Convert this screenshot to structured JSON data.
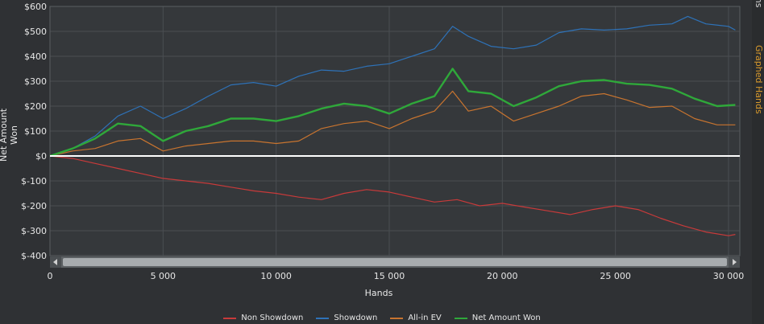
{
  "side_tabs": [
    {
      "label": "Graphs",
      "color": "#d8d8d8"
    },
    {
      "label": "Graphed Hands",
      "color": "#d99a2c"
    }
  ],
  "chart_data": {
    "type": "line",
    "title": "",
    "xlabel": "Hands",
    "ylabel": "Net Amount Won",
    "xlim": [
      0,
      30500
    ],
    "ylim": [
      -400,
      600
    ],
    "x_ticks": [
      0,
      5000,
      10000,
      15000,
      20000,
      25000,
      30000
    ],
    "x_tick_labels": [
      "0",
      "5 000",
      "10 000",
      "15 000",
      "20 000",
      "25 000",
      "30 000"
    ],
    "y_ticks": [
      600,
      500,
      400,
      300,
      200,
      100,
      0,
      -100,
      -200,
      -300,
      -400
    ],
    "y_tick_labels": [
      "$600",
      "$500",
      "$400",
      "$300",
      "$200",
      "$100",
      "$0",
      "$-100",
      "$-200",
      "$-300",
      "$-400"
    ],
    "grid": true,
    "legend_position": "bottom",
    "series": [
      {
        "name": "Non Showdown",
        "color": "#c83a3a",
        "x": [
          0,
          1000,
          2000,
          3000,
          4000,
          5000,
          6000,
          7000,
          8000,
          9000,
          10000,
          11000,
          12000,
          13000,
          14000,
          15000,
          16000,
          17000,
          18000,
          19000,
          20000,
          21000,
          22000,
          23000,
          24000,
          25000,
          26000,
          27000,
          28000,
          29000,
          30000,
          30300
        ],
        "y": [
          0,
          -10,
          -30,
          -50,
          -70,
          -90,
          -100,
          -110,
          -125,
          -140,
          -150,
          -165,
          -175,
          -150,
          -135,
          -145,
          -165,
          -185,
          -175,
          -200,
          -190,
          -205,
          -220,
          -235,
          -215,
          -200,
          -215,
          -250,
          -280,
          -305,
          -320,
          -315
        ]
      },
      {
        "name": "Showdown",
        "color": "#2e72b8",
        "x": [
          0,
          1000,
          2000,
          3000,
          4000,
          5000,
          6000,
          7000,
          8000,
          9000,
          10000,
          11000,
          12000,
          13000,
          14000,
          15000,
          16000,
          17000,
          17800,
          18500,
          19500,
          20500,
          21500,
          22500,
          23500,
          24500,
          25500,
          26500,
          27500,
          28200,
          29000,
          30000,
          30300
        ],
        "y": [
          0,
          30,
          80,
          160,
          200,
          150,
          190,
          240,
          285,
          295,
          280,
          320,
          345,
          340,
          360,
          370,
          400,
          430,
          520,
          480,
          440,
          430,
          445,
          495,
          510,
          505,
          510,
          525,
          530,
          560,
          530,
          520,
          505
        ]
      },
      {
        "name": "All-in EV",
        "color": "#c8742f",
        "x": [
          0,
          1000,
          2000,
          3000,
          4000,
          5000,
          6000,
          7000,
          8000,
          9000,
          10000,
          11000,
          12000,
          13000,
          14000,
          15000,
          16000,
          17000,
          17800,
          18500,
          19500,
          20500,
          21500,
          22500,
          23500,
          24500,
          25500,
          26500,
          27500,
          28500,
          29500,
          30300
        ],
        "y": [
          0,
          20,
          30,
          60,
          70,
          20,
          40,
          50,
          60,
          60,
          50,
          60,
          110,
          130,
          140,
          110,
          150,
          180,
          260,
          180,
          200,
          140,
          170,
          200,
          240,
          250,
          225,
          195,
          200,
          150,
          125,
          125
        ]
      },
      {
        "name": "Net Amount Won",
        "color": "#2fa83a",
        "x": [
          0,
          1000,
          2000,
          3000,
          4000,
          5000,
          6000,
          7000,
          8000,
          9000,
          10000,
          11000,
          12000,
          13000,
          14000,
          15000,
          16000,
          17000,
          17800,
          18500,
          19500,
          20500,
          21500,
          22500,
          23500,
          24500,
          25500,
          26500,
          27500,
          28500,
          29500,
          30300
        ],
        "y": [
          0,
          30,
          70,
          130,
          120,
          60,
          100,
          120,
          150,
          150,
          140,
          160,
          190,
          210,
          200,
          170,
          210,
          240,
          350,
          260,
          250,
          200,
          235,
          280,
          300,
          305,
          290,
          285,
          270,
          230,
          200,
          205
        ]
      }
    ]
  }
}
